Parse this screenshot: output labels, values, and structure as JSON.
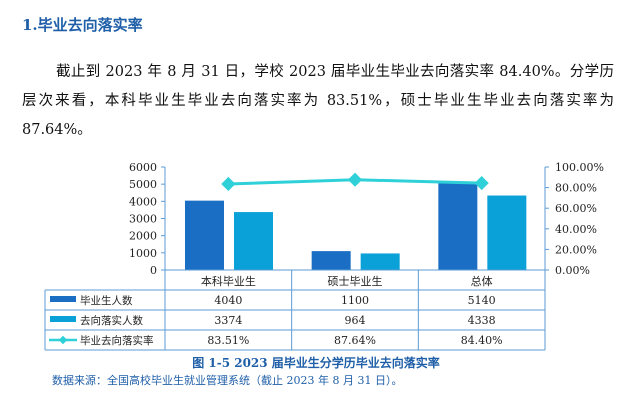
{
  "heading": "1.毕业去向落实率",
  "paragraph": "截止到 2023 年 8 月 31 日，学校 2023 届毕业生毕业去向落实率 84.40%。分学历层次来看，本科毕业生毕业去向落实率为 83.51%，硕士毕业生毕业去向落实率为 87.64%。",
  "caption": "图 1-5  2023 届毕业生分学历毕业去向落实率",
  "source": "数据来源：全国高校毕业生就业管理系统（截止 2023 年 8 月 31 日）。",
  "chart_data": {
    "type": "bar",
    "categories": [
      "本科毕业生",
      "硕士毕业生",
      "总体"
    ],
    "series": [
      {
        "name": "毕业生人数",
        "type": "bar",
        "axis": "left",
        "color": "#1a6fc4",
        "values": [
          4040,
          1100,
          5140
        ],
        "labels": [
          "4040",
          "1100",
          "5140"
        ]
      },
      {
        "name": "去向落实人数",
        "type": "bar",
        "axis": "left",
        "color": "#0aa0d8",
        "values": [
          3374,
          964,
          4338
        ],
        "labels": [
          "3374",
          "964",
          "4338"
        ]
      },
      {
        "name": "毕业去向落实率",
        "type": "line",
        "axis": "right",
        "color": "#2fd0d8",
        "values": [
          83.51,
          87.64,
          84.4
        ],
        "labels": [
          "83.51%",
          "87.64%",
          "84.40%"
        ]
      }
    ],
    "left_axis": {
      "range": [
        0,
        6000
      ],
      "ticks": [
        "0",
        "1000",
        "2000",
        "3000",
        "4000",
        "5000",
        "6000"
      ]
    },
    "right_axis": {
      "range": [
        0,
        100
      ],
      "ticks": [
        "0.00%",
        "20.00%",
        "40.00%",
        "60.00%",
        "80.00%",
        "100.00%"
      ]
    },
    "data_table": true,
    "grid": false
  }
}
